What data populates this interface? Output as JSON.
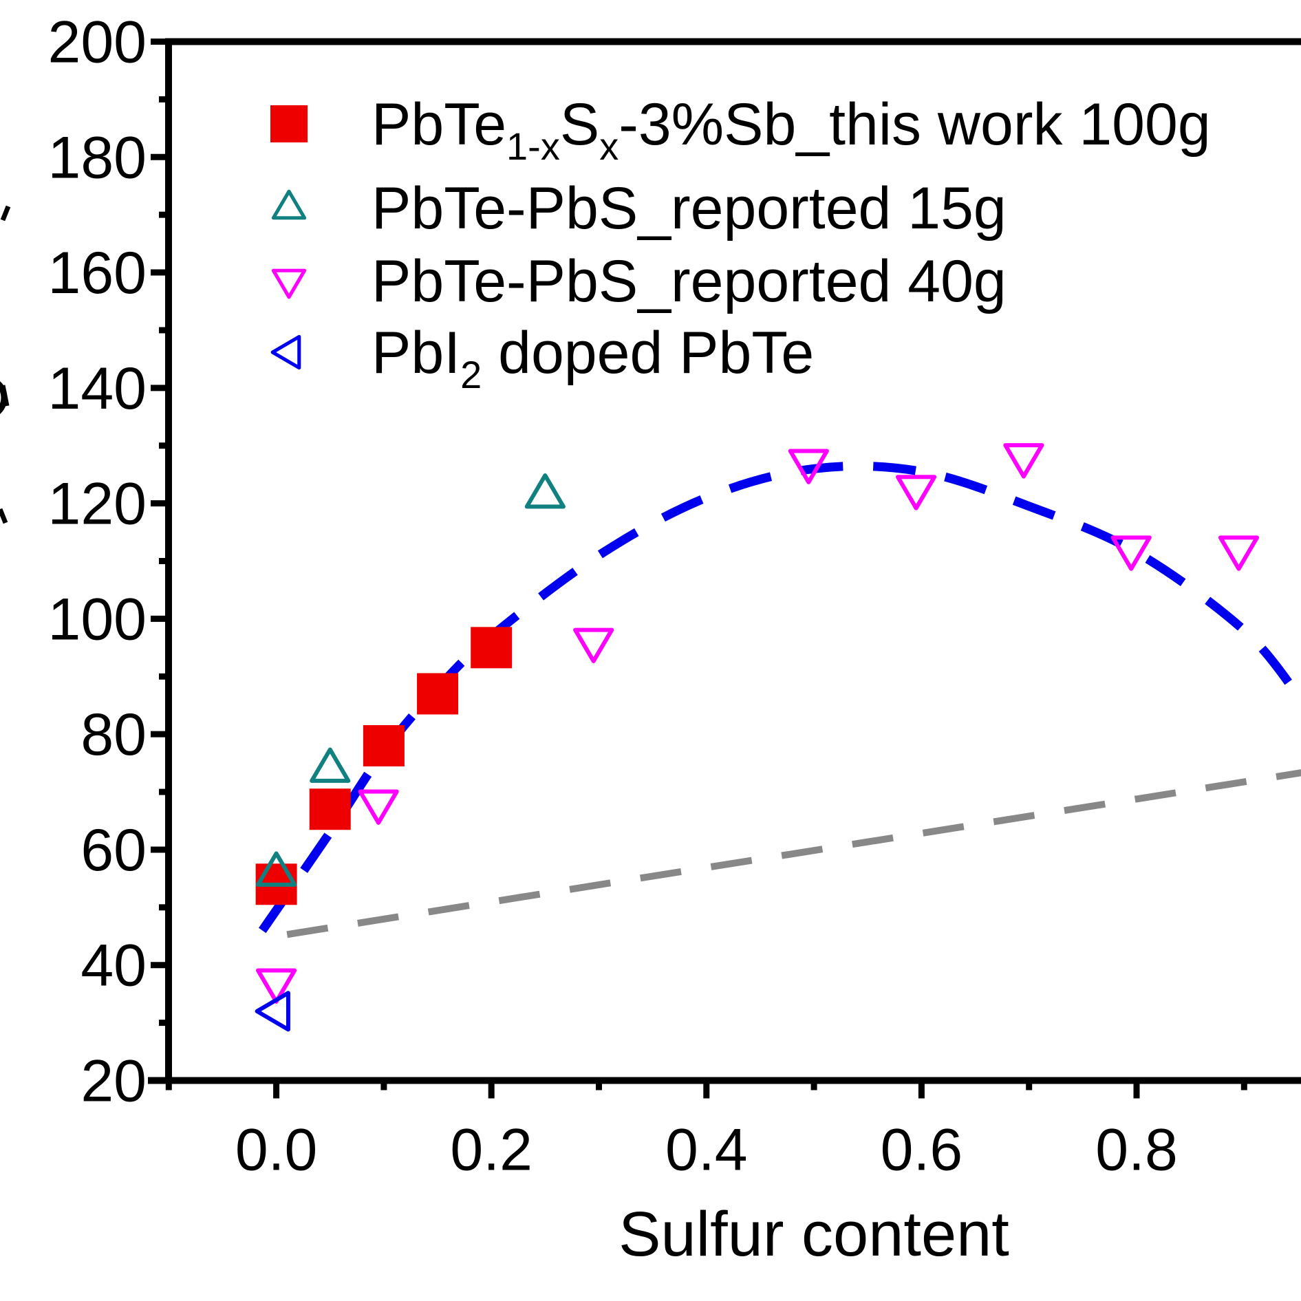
{
  "chart_data": {
    "type": "scatter",
    "title": "",
    "xlabel": "Sulfur content",
    "ylabel": "",
    "xlim": [
      -0.1,
      1.05
    ],
    "ylim": [
      20,
      200
    ],
    "x_ticks": [
      0.0,
      0.2,
      0.4,
      0.6,
      0.8
    ],
    "x_tick_labels": [
      "0.0",
      "0.2",
      "0.4",
      "0.6",
      "0.8"
    ],
    "x_minor_step": 0.1,
    "y_ticks": [
      20,
      40,
      60,
      80,
      100,
      120,
      140,
      160,
      180,
      200
    ],
    "y_tick_labels": [
      "20",
      "40",
      "60",
      "80",
      "100",
      "120",
      "140",
      "160",
      "180",
      "200"
    ],
    "y_minor_step": 10,
    "grid": false,
    "legend_position": "top-left",
    "series": [
      {
        "name": "PbTe1-xSx-3%Sb_this work 100g",
        "legend_parts": [
          {
            "text": "PbTe",
            "sub": false
          },
          {
            "text": "1-x",
            "sub": true
          },
          {
            "text": "S",
            "sub": false
          },
          {
            "text": "x",
            "sub": true
          },
          {
            "text": "-3%Sb_this work 100g",
            "sub": false
          }
        ],
        "marker": "square-filled",
        "color": "#ee0000",
        "x": [
          0.0,
          0.05,
          0.1,
          0.15,
          0.2
        ],
        "y": [
          54,
          67,
          78,
          87,
          95
        ]
      },
      {
        "name": "PbTe-PbS_reported 15g",
        "legend_parts": [
          {
            "text": "PbTe-PbS_reported 15g",
            "sub": false
          }
        ],
        "marker": "triangle-up-open",
        "color": "#108080",
        "x": [
          0.0,
          0.05,
          0.25
        ],
        "y": [
          56,
          74,
          121.5
        ]
      },
      {
        "name": "PbTe-PbS_reported 40g",
        "legend_parts": [
          {
            "text": "PbTe-PbS_reported 40g",
            "sub": false
          }
        ],
        "marker": "triangle-down-open",
        "color": "#ff00ff",
        "x": [
          0.0,
          0.095,
          0.295,
          0.495,
          0.595,
          0.695,
          0.795,
          0.895
        ],
        "y": [
          37,
          68,
          96,
          127,
          122.5,
          128,
          112,
          112
        ]
      },
      {
        "name": "PbI2 doped PbTe",
        "legend_parts": [
          {
            "text": "PbI",
            "sub": false
          },
          {
            "text": "2",
            "sub": true
          },
          {
            "text": " doped PbTe",
            "sub": false
          }
        ],
        "marker": "triangle-left-open",
        "color": "#0000ee",
        "x": [
          0.0
        ],
        "y": [
          32
        ]
      }
    ],
    "lines": [
      {
        "name": "fit-curve",
        "style": "dashed",
        "color": "#0000ee",
        "x": [
          -0.013,
          0.05,
          0.1,
          0.15,
          0.2,
          0.3,
          0.4,
          0.5,
          0.6,
          0.7,
          0.8,
          0.9,
          0.953
        ],
        "y": [
          46,
          63,
          77,
          88,
          97,
          111,
          121,
          126,
          125.5,
          119.5,
          111.5,
          98,
          86
        ]
      },
      {
        "name": "linear-reference",
        "style": "dashed",
        "color": "#888888",
        "x": [
          0.01,
          1.05
        ],
        "y": [
          45.3,
          76.2
        ]
      }
    ]
  }
}
